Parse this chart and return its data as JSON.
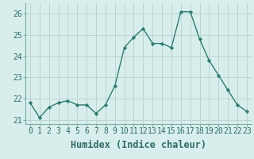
{
  "x": [
    0,
    1,
    2,
    3,
    4,
    5,
    6,
    7,
    8,
    9,
    10,
    11,
    12,
    13,
    14,
    15,
    16,
    17,
    18,
    19,
    20,
    21,
    22,
    23
  ],
  "y": [
    21.8,
    21.1,
    21.6,
    21.8,
    21.9,
    21.7,
    21.7,
    21.3,
    21.7,
    22.6,
    24.4,
    24.9,
    25.3,
    24.6,
    24.6,
    24.4,
    26.1,
    26.1,
    24.8,
    23.8,
    23.1,
    22.4,
    21.7,
    21.4
  ],
  "line_color": "#2d7d6e",
  "marker": "D",
  "marker_size": 2.2,
  "bg_color": "#d8eeec",
  "grid_color": "#b8d8d4",
  "xlabel": "Humidex (Indice chaleur)",
  "xlim": [
    -0.5,
    23.5
  ],
  "ylim": [
    20.8,
    26.5
  ],
  "yticks": [
    21,
    22,
    23,
    24,
    25,
    26
  ],
  "xticks": [
    0,
    1,
    2,
    3,
    4,
    5,
    6,
    7,
    8,
    9,
    10,
    11,
    12,
    13,
    14,
    15,
    16,
    17,
    18,
    19,
    20,
    21,
    22,
    23
  ],
  "xtick_labels": [
    "0",
    "1",
    "2",
    "3",
    "4",
    "5",
    "6",
    "7",
    "8",
    "9",
    "10",
    "11",
    "12",
    "13",
    "14",
    "15",
    "16",
    "17",
    "18",
    "19",
    "20",
    "21",
    "22",
    "23"
  ],
  "xlabel_fontsize": 8.5,
  "tick_fontsize": 7.0,
  "linewidth": 1.0
}
